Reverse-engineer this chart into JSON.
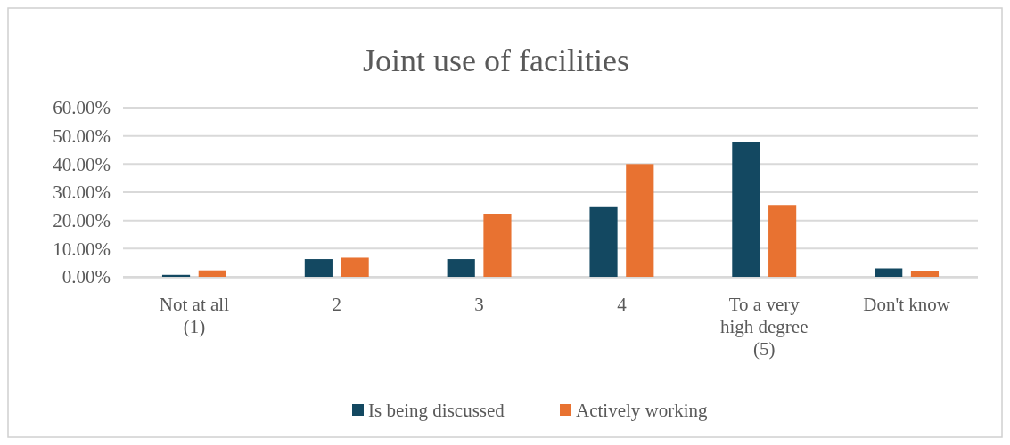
{
  "chart_data": {
    "type": "bar",
    "title": "Joint use of facilities",
    "categories": [
      "Not at all (1)",
      "2",
      "3",
      "4",
      "To a very high degree (5)",
      "Don't know"
    ],
    "series": [
      {
        "name": "Is being discussed",
        "color": "#134861",
        "values": [
          0.7,
          6.3,
          6.3,
          24.7,
          48,
          3
        ]
      },
      {
        "name": "Actively working",
        "color": "#e87231",
        "values": [
          2.3,
          6.8,
          22.3,
          40,
          25.5,
          2
        ]
      }
    ],
    "ylim": [
      0,
      60
    ],
    "yticks": [
      {
        "value": 0,
        "label": "0.00%"
      },
      {
        "value": 10,
        "label": "10.00%"
      },
      {
        "value": 20,
        "label": "20.00%"
      },
      {
        "value": 30,
        "label": "30.00%"
      },
      {
        "value": 40,
        "label": "40.00%"
      },
      {
        "value": 50,
        "label": "50.00%"
      },
      {
        "value": 60,
        "label": "60.00%"
      }
    ],
    "grid": "y",
    "legend": "bottom"
  }
}
